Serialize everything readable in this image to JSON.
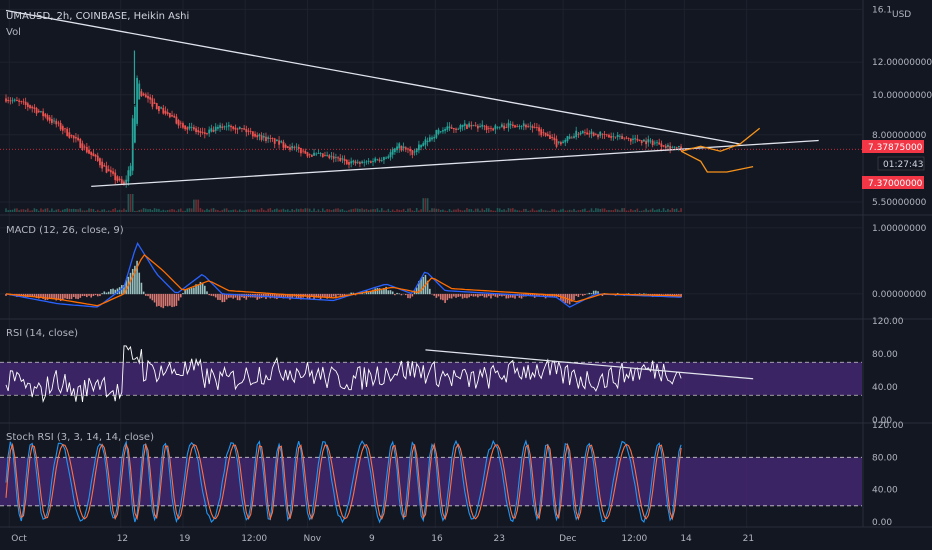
{
  "header": {
    "symbol": "UMAUSD, 2h, COINBASE, Heikin Ashi",
    "volume_label": "Vol",
    "currency": "USD"
  },
  "colors": {
    "background": "#131722",
    "grid": "#1e222d",
    "up": "#26a69a",
    "down": "#ef5350",
    "trendline": "#e0e3eb",
    "forecast": "#f7931a",
    "macd_line": "#2962ff",
    "signal_line": "#ff6d00",
    "rsi_line": "#ffffff",
    "rsi_band": "#4a2a7a",
    "stoch_k": "#2196f3",
    "stoch_d": "#ff7043",
    "price_badge": "#f23645"
  },
  "badges": {
    "last_price": "7.37875000",
    "countdown": "01:27:43",
    "low_price": "7.37000000"
  },
  "chart_data": [
    {
      "type": "candlestick",
      "name": "price",
      "x_ticks": [
        "Oct",
        "12",
        "19",
        "12:00",
        "Nov",
        "9",
        "16",
        "23",
        "Dec",
        "12:00",
        "14",
        "21"
      ],
      "y_ticks": [
        "16.1",
        "12.00000000",
        "10.00000000",
        "8.00000000",
        "5.50000000"
      ],
      "y_scale": "log",
      "ylim": [
        5.2,
        16.5
      ],
      "approx_path": [
        {
          "x": 0,
          "y": 9.8
        },
        {
          "x": 4,
          "y": 9.3
        },
        {
          "x": 8,
          "y": 8.4
        },
        {
          "x": 12,
          "y": 7.4
        },
        {
          "x": 16,
          "y": 6.4
        },
        {
          "x": 18,
          "y": 6.0
        },
        {
          "x": 19,
          "y": 6.8
        },
        {
          "x": 20,
          "y": 10.2
        },
        {
          "x": 22,
          "y": 9.6
        },
        {
          "x": 26,
          "y": 8.6
        },
        {
          "x": 30,
          "y": 8.0
        },
        {
          "x": 34,
          "y": 8.5
        },
        {
          "x": 38,
          "y": 8.0
        },
        {
          "x": 42,
          "y": 7.6
        },
        {
          "x": 46,
          "y": 7.2
        },
        {
          "x": 50,
          "y": 7.0
        },
        {
          "x": 54,
          "y": 6.8
        },
        {
          "x": 58,
          "y": 7.1
        },
        {
          "x": 60,
          "y": 7.5
        },
        {
          "x": 62,
          "y": 7.2
        },
        {
          "x": 66,
          "y": 8.2
        },
        {
          "x": 70,
          "y": 8.4
        },
        {
          "x": 74,
          "y": 8.3
        },
        {
          "x": 78,
          "y": 8.5
        },
        {
          "x": 80,
          "y": 8.4
        },
        {
          "x": 84,
          "y": 7.6
        },
        {
          "x": 88,
          "y": 8.2
        },
        {
          "x": 92,
          "y": 7.9
        },
        {
          "x": 96,
          "y": 7.8
        },
        {
          "x": 100,
          "y": 7.6
        },
        {
          "x": 103,
          "y": 7.38
        }
      ],
      "annotations": [
        {
          "type": "trendline",
          "label": "upper",
          "from": {
            "x": 0,
            "y": 16.0
          },
          "to": {
            "x": 112,
            "y": 7.6
          }
        },
        {
          "type": "trendline",
          "label": "lower",
          "from": {
            "x": 13,
            "y": 6.0
          },
          "to": {
            "x": 124,
            "y": 7.75
          }
        },
        {
          "type": "hline",
          "y": 7.37875,
          "style": "dotted"
        }
      ],
      "forecast_paths": [
        [
          {
            "x": 103,
            "y": 7.3
          },
          {
            "x": 106,
            "y": 7.5
          },
          {
            "x": 109,
            "y": 7.3
          },
          {
            "x": 112,
            "y": 7.6
          },
          {
            "x": 115,
            "y": 8.3
          }
        ],
        [
          {
            "x": 103,
            "y": 7.3
          },
          {
            "x": 106,
            "y": 6.9
          },
          {
            "x": 107,
            "y": 6.5
          },
          {
            "x": 110,
            "y": 6.5
          },
          {
            "x": 114,
            "y": 6.7
          }
        ]
      ]
    },
    {
      "type": "bar",
      "name": "volume",
      "spikes": [
        {
          "x": 19,
          "v": 1.0
        },
        {
          "x": 29,
          "v": 0.6
        },
        {
          "x": 64,
          "v": 0.7
        }
      ]
    },
    {
      "type": "line",
      "name": "MACD",
      "title": "MACD (12, 26, close, 9)",
      "y_ticks": [
        "1.00000000",
        "0.00000000"
      ],
      "ylim": [
        -0.35,
        1.15
      ],
      "series": [
        {
          "name": "macd",
          "approx": [
            {
              "x": 0,
              "y": 0.0
            },
            {
              "x": 8,
              "y": -0.15
            },
            {
              "x": 14,
              "y": -0.2
            },
            {
              "x": 18,
              "y": 0.1
            },
            {
              "x": 20,
              "y": 0.78
            },
            {
              "x": 23,
              "y": 0.3
            },
            {
              "x": 26,
              "y": 0.0
            },
            {
              "x": 30,
              "y": 0.3
            },
            {
              "x": 33,
              "y": 0.0
            },
            {
              "x": 50,
              "y": -0.1
            },
            {
              "x": 58,
              "y": 0.15
            },
            {
              "x": 62,
              "y": 0.0
            },
            {
              "x": 64,
              "y": 0.35
            },
            {
              "x": 67,
              "y": 0.05
            },
            {
              "x": 84,
              "y": -0.05
            },
            {
              "x": 86,
              "y": -0.2
            },
            {
              "x": 90,
              "y": 0.0
            },
            {
              "x": 103,
              "y": -0.05
            }
          ]
        },
        {
          "name": "signal",
          "approx": [
            {
              "x": 0,
              "y": 0.0
            },
            {
              "x": 8,
              "y": -0.08
            },
            {
              "x": 14,
              "y": -0.18
            },
            {
              "x": 18,
              "y": 0.0
            },
            {
              "x": 21,
              "y": 0.6
            },
            {
              "x": 24,
              "y": 0.35
            },
            {
              "x": 27,
              "y": 0.05
            },
            {
              "x": 31,
              "y": 0.2
            },
            {
              "x": 34,
              "y": 0.05
            },
            {
              "x": 50,
              "y": -0.06
            },
            {
              "x": 59,
              "y": 0.1
            },
            {
              "x": 63,
              "y": 0.02
            },
            {
              "x": 65,
              "y": 0.25
            },
            {
              "x": 68,
              "y": 0.08
            },
            {
              "x": 84,
              "y": -0.02
            },
            {
              "x": 87,
              "y": -0.12
            },
            {
              "x": 91,
              "y": 0.0
            },
            {
              "x": 103,
              "y": -0.03
            }
          ]
        }
      ]
    },
    {
      "type": "line",
      "name": "RSI",
      "title": "RSI (14, close)",
      "y_ticks": [
        "120.00",
        "80.00",
        "40.00",
        "0.00"
      ],
      "ylim": [
        0,
        120
      ],
      "band": [
        30,
        70
      ],
      "annotations": [
        {
          "type": "trendline",
          "from": {
            "x": 64,
            "y": 85
          },
          "to": {
            "x": 114,
            "y": 50
          }
        }
      ]
    },
    {
      "type": "line",
      "name": "Stoch RSI",
      "title": "Stoch RSI (3, 3, 14, 14, close)",
      "y_ticks": [
        "120.00",
        "80.00",
        "40.00",
        "0.00"
      ],
      "ylim": [
        0,
        120
      ],
      "band": [
        20,
        80
      ]
    }
  ]
}
